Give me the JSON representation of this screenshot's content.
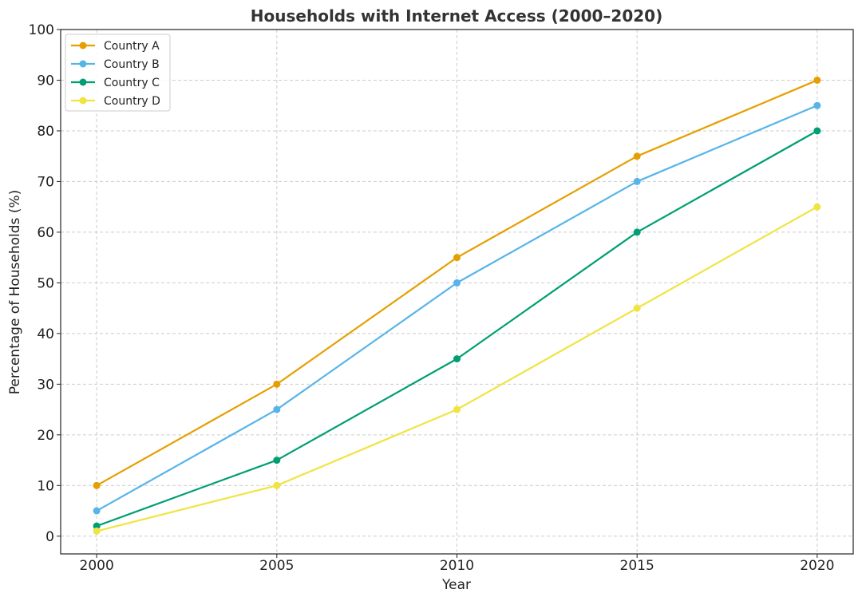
{
  "chart_data": {
    "type": "line",
    "title": "Households with Internet Access (2000–2020)",
    "xlabel": "Year",
    "ylabel": "Percentage of Households (%)",
    "x": [
      2000,
      2005,
      2010,
      2015,
      2020
    ],
    "x_tick_labels": [
      "2000",
      "2005",
      "2010",
      "2015",
      "2020"
    ],
    "xlim": [
      1999,
      2021
    ],
    "ylim": [
      -3.5,
      100
    ],
    "y_ticks": [
      0,
      10,
      20,
      30,
      40,
      50,
      60,
      70,
      80,
      90,
      100
    ],
    "y_tick_labels": [
      "0",
      "10",
      "20",
      "30",
      "40",
      "50",
      "60",
      "70",
      "80",
      "90",
      "100"
    ],
    "grid": true,
    "legend_position": "top-left",
    "series": [
      {
        "name": "Country A",
        "color": "#e69f00",
        "values": [
          10,
          30,
          55,
          75,
          90
        ]
      },
      {
        "name": "Country B",
        "color": "#56b4e9",
        "values": [
          5,
          25,
          50,
          70,
          85
        ]
      },
      {
        "name": "Country C",
        "color": "#009e73",
        "values": [
          2,
          15,
          35,
          60,
          80
        ]
      },
      {
        "name": "Country D",
        "color": "#f0e442",
        "values": [
          1,
          10,
          25,
          45,
          65
        ]
      }
    ]
  }
}
